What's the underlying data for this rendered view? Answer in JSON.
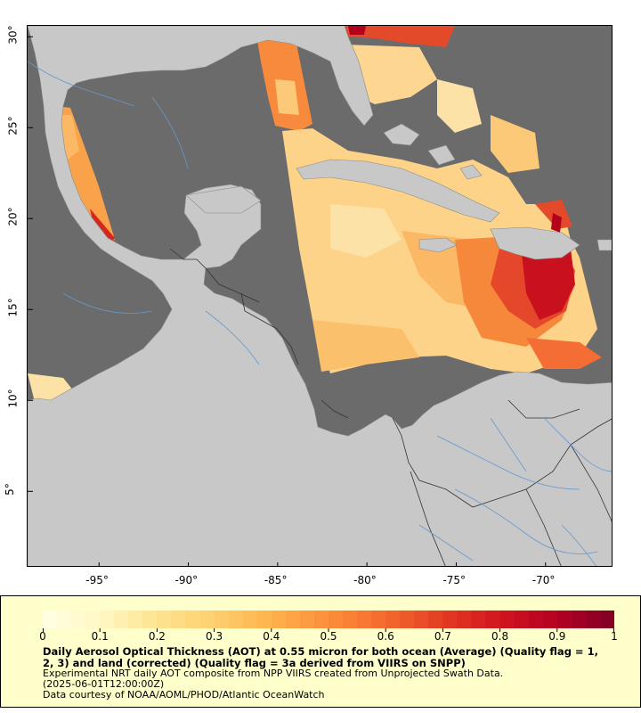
{
  "map": {
    "x_ticks": [
      "-95°",
      "-90°",
      "-85°",
      "-80°",
      "-75°",
      "-70°"
    ],
    "x_values": [
      -95,
      -90,
      -85,
      -80,
      -75,
      -70
    ],
    "y_ticks": [
      "30°",
      "25°",
      "20°",
      "15°",
      "10°",
      "5°"
    ],
    "y_values": [
      30,
      25,
      20,
      15,
      10,
      5
    ],
    "lon_range": [
      -99,
      -66.2
    ],
    "lat_range": [
      0.8,
      30.6
    ]
  },
  "colors": {
    "no_data": "#6b6b6b",
    "land": "#c8c8c8",
    "border": "#333333",
    "river": "#6699cc",
    "legend_bg": "#ffffcc"
  },
  "legend": {
    "scale_min": 0,
    "scale_max": 1,
    "tick_labels": [
      "0",
      "0.1",
      "0.2",
      "0.3",
      "0.4",
      "0.5",
      "0.6",
      "0.7",
      "0.8",
      "0.9",
      "1"
    ],
    "title": "Daily Aerosol Optical Thickness (AOT) at 0.55 micron for both ocean (Average) (Quality flag = 1, 2, 3) and land (corrected) (Quality flag = 3a derived from VIIRS on SNPP)",
    "line1": "Experimental NRT daily AOT composite from NPP VIIRS created from Unprojected Swath Data.",
    "line2": "(2025-06-01T12:00:00Z)",
    "line3": "Data courtesy of NOAA/AOML/PHOD/Atlantic OceanWatch"
  }
}
